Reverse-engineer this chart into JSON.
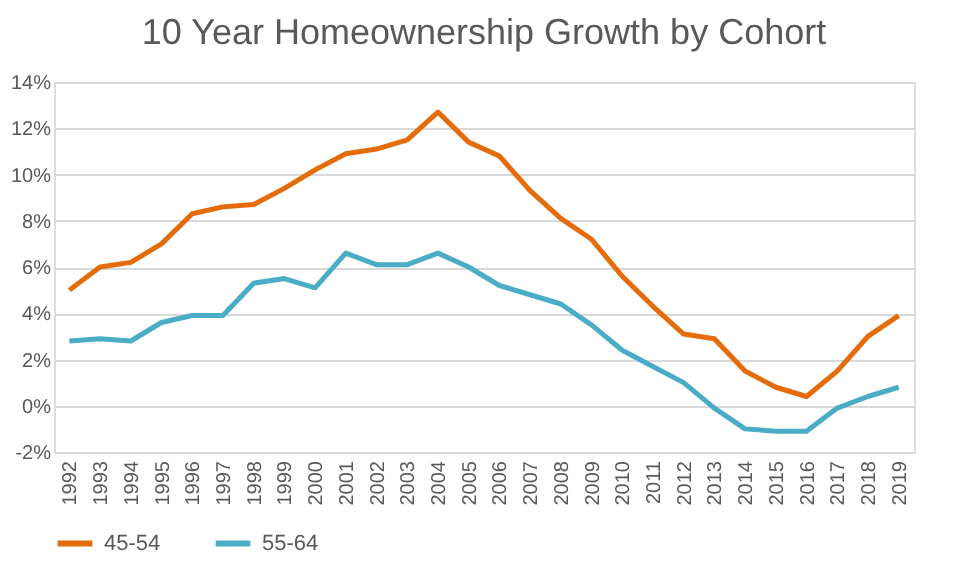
{
  "chart_data": {
    "type": "line",
    "title": "10 Year Homeownership Growth by Cohort",
    "categories": [
      "1992",
      "1993",
      "1994",
      "1995",
      "1996",
      "1997",
      "1998",
      "1999",
      "2000",
      "2001",
      "2002",
      "2003",
      "2004",
      "2005",
      "2006",
      "2007",
      "2008",
      "2009",
      "2010",
      "2011",
      "2012",
      "2013",
      "2014",
      "2015",
      "2016",
      "2017",
      "2018",
      "2019"
    ],
    "series": [
      {
        "name": "45-54",
        "color": "#e46c0a",
        "values": [
          5.0,
          6.0,
          6.2,
          7.0,
          8.3,
          8.6,
          8.7,
          9.4,
          10.2,
          10.9,
          11.1,
          11.5,
          12.7,
          11.4,
          10.8,
          9.3,
          8.1,
          7.2,
          5.6,
          4.3,
          3.1,
          2.9,
          1.5,
          0.8,
          0.4,
          1.5,
          3.0,
          3.9
        ]
      },
      {
        "name": "55-64",
        "color": "#4bacc6",
        "values": [
          2.8,
          2.9,
          2.8,
          3.6,
          3.9,
          3.9,
          5.3,
          5.5,
          5.1,
          6.6,
          6.1,
          6.1,
          6.6,
          6.0,
          5.2,
          4.8,
          4.4,
          3.5,
          2.4,
          1.7,
          1.0,
          -0.1,
          -1.0,
          -1.1,
          -1.1,
          -0.1,
          0.4,
          0.8
        ]
      }
    ],
    "ylim": [
      -2,
      14
    ],
    "yticks": [
      {
        "value": -2,
        "label": "-2%"
      },
      {
        "value": 0,
        "label": "0%"
      },
      {
        "value": 2,
        "label": "2%"
      },
      {
        "value": 4,
        "label": "4%"
      },
      {
        "value": 6,
        "label": "6%"
      },
      {
        "value": 8,
        "label": "8%"
      },
      {
        "value": 10,
        "label": "10%"
      },
      {
        "value": 12,
        "label": "12%"
      },
      {
        "value": 14,
        "label": "14%"
      }
    ],
    "grid": "y",
    "legend": "bottom",
    "marker": "none",
    "line_style": "solid"
  }
}
